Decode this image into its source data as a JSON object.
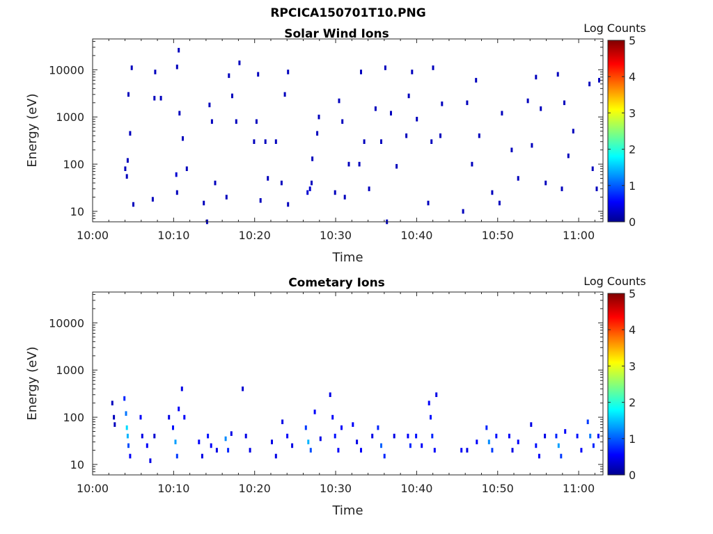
{
  "figure_title": "RPCICA150701T10.PNG",
  "colorbar": {
    "title": "Log Counts",
    "ticks": [
      "0",
      "1",
      "2",
      "3",
      "4",
      "5"
    ],
    "range": [
      0,
      5
    ],
    "colormap": "jet"
  },
  "chart_data": [
    {
      "type": "heatmap",
      "title": "Solar Wind Ions",
      "xlabel": "Time",
      "ylabel": "Energy (eV)",
      "x_ticks": [
        "10:00",
        "10:10",
        "10:20",
        "10:30",
        "10:40",
        "10:50",
        "11:00"
      ],
      "x_range_minutes": [
        0,
        63
      ],
      "y_ticks": [
        "10",
        "100",
        "1000",
        "10000"
      ],
      "y_scale": "log",
      "y_range": [
        6,
        45000
      ],
      "color_range": [
        0,
        5
      ],
      "description": "sparse scattered counts, mostly log counts below 0.5",
      "points": [
        [
          3.9,
          80,
          0.3
        ],
        [
          4.1,
          55,
          0.3
        ],
        [
          4.2,
          120,
          0.3
        ],
        [
          4.3,
          3000,
          0.3
        ],
        [
          4.5,
          450,
          0.3
        ],
        [
          4.7,
          11000,
          0.3
        ],
        [
          4.9,
          14,
          0.3
        ],
        [
          7.3,
          18,
          0.3
        ],
        [
          7.5,
          2500,
          0.3
        ],
        [
          7.6,
          9000,
          0.3
        ],
        [
          8.3,
          2500,
          0.3
        ],
        [
          10.2,
          60,
          0.4
        ],
        [
          10.3,
          25,
          0.3
        ],
        [
          10.3,
          11500,
          0.3
        ],
        [
          10.5,
          26000,
          0.3
        ],
        [
          10.6,
          1200,
          0.3
        ],
        [
          11.0,
          350,
          0.3
        ],
        [
          11.5,
          80,
          0.3
        ],
        [
          13.6,
          15,
          0.3
        ],
        [
          14.0,
          6,
          0.3
        ],
        [
          14.3,
          1800,
          0.3
        ],
        [
          14.6,
          800,
          0.3
        ],
        [
          15.0,
          40,
          0.3
        ],
        [
          16.4,
          20,
          0.3
        ],
        [
          16.7,
          7500,
          0.3
        ],
        [
          17.1,
          2800,
          0.3
        ],
        [
          17.6,
          800,
          0.3
        ],
        [
          18.0,
          14000,
          0.3
        ],
        [
          19.8,
          300,
          0.3
        ],
        [
          20.1,
          800,
          0.3
        ],
        [
          20.3,
          8000,
          0.3
        ],
        [
          20.6,
          17,
          0.3
        ],
        [
          21.2,
          300,
          0.3
        ],
        [
          21.5,
          50,
          0.3
        ],
        [
          22.5,
          300,
          0.3
        ],
        [
          23.2,
          40,
          0.3
        ],
        [
          23.6,
          3000,
          0.3
        ],
        [
          24.0,
          9000,
          0.3
        ],
        [
          24.0,
          14,
          0.3
        ],
        [
          26.4,
          25,
          0.4
        ],
        [
          26.7,
          30,
          0.4
        ],
        [
          26.9,
          40,
          0.3
        ],
        [
          27.0,
          130,
          0.3
        ],
        [
          27.6,
          450,
          0.3
        ],
        [
          27.8,
          1000,
          0.3
        ],
        [
          29.8,
          25,
          0.3
        ],
        [
          30.3,
          2200,
          0.3
        ],
        [
          30.7,
          800,
          0.3
        ],
        [
          31.0,
          20,
          0.3
        ],
        [
          31.5,
          100,
          0.3
        ],
        [
          32.8,
          100,
          0.3
        ],
        [
          33.0,
          9000,
          0.3
        ],
        [
          33.4,
          300,
          0.3
        ],
        [
          34.0,
          30,
          0.3
        ],
        [
          34.8,
          1500,
          0.3
        ],
        [
          35.5,
          300,
          0.3
        ],
        [
          36.0,
          11000,
          0.3
        ],
        [
          36.2,
          6,
          0.3
        ],
        [
          36.7,
          1200,
          0.3
        ],
        [
          37.4,
          90,
          0.3
        ],
        [
          38.6,
          400,
          0.3
        ],
        [
          38.9,
          2800,
          0.3
        ],
        [
          39.3,
          9000,
          0.3
        ],
        [
          39.9,
          900,
          0.3
        ],
        [
          41.3,
          15,
          0.3
        ],
        [
          41.7,
          300,
          0.3
        ],
        [
          41.9,
          11000,
          0.3
        ],
        [
          42.8,
          400,
          0.3
        ],
        [
          43.0,
          1900,
          0.3
        ],
        [
          45.6,
          10,
          0.3
        ],
        [
          46.1,
          2000,
          0.3
        ],
        [
          46.7,
          100,
          0.3
        ],
        [
          47.2,
          6000,
          0.3
        ],
        [
          47.6,
          400,
          0.3
        ],
        [
          49.2,
          25,
          0.3
        ],
        [
          50.1,
          15,
          0.3
        ],
        [
          50.4,
          1200,
          0.3
        ],
        [
          51.6,
          200,
          0.3
        ],
        [
          52.4,
          50,
          0.3
        ],
        [
          53.6,
          2200,
          0.3
        ],
        [
          54.1,
          250,
          0.3
        ],
        [
          54.6,
          7000,
          0.3
        ],
        [
          55.2,
          1500,
          0.3
        ],
        [
          55.8,
          40,
          0.3
        ],
        [
          57.3,
          8000,
          0.3
        ],
        [
          57.8,
          30,
          0.3
        ],
        [
          58.1,
          2000,
          0.3
        ],
        [
          58.6,
          150,
          0.3
        ],
        [
          59.2,
          500,
          0.3
        ],
        [
          61.2,
          5000,
          0.3
        ],
        [
          61.6,
          80,
          0.3
        ],
        [
          62.1,
          30,
          0.3
        ],
        [
          62.4,
          6000,
          0.3
        ]
      ]
    },
    {
      "type": "heatmap",
      "title": "Cometary Ions",
      "xlabel": "Time",
      "ylabel": "Energy (eV)",
      "x_ticks": [
        "10:00",
        "10:10",
        "10:20",
        "10:30",
        "10:40",
        "10:50",
        "11:00"
      ],
      "x_range_minutes": [
        0,
        63
      ],
      "y_ticks": [
        "10",
        "100",
        "1000",
        "10000"
      ],
      "y_scale": "log",
      "y_range": [
        6,
        45000
      ],
      "color_range": [
        0,
        5
      ],
      "description": "bursts of cometary ions between roughly 10 and 400 eV",
      "points": [
        [
          2.3,
          200,
          0.3
        ],
        [
          2.5,
          100,
          0.3
        ],
        [
          2.6,
          70,
          0.3
        ],
        [
          3.8,
          250,
          0.8
        ],
        [
          4.0,
          120,
          1.2
        ],
        [
          4.1,
          60,
          1.7
        ],
        [
          4.2,
          40,
          1.5
        ],
        [
          4.3,
          25,
          1.0
        ],
        [
          4.5,
          15,
          0.6
        ],
        [
          5.8,
          100,
          0.6
        ],
        [
          6.0,
          40,
          0.5
        ],
        [
          6.6,
          25,
          0.6
        ],
        [
          7.0,
          12,
          0.5
        ],
        [
          7.5,
          40,
          0.4
        ],
        [
          9.3,
          100,
          0.5
        ],
        [
          9.8,
          60,
          0.7
        ],
        [
          10.1,
          30,
          1.4
        ],
        [
          10.3,
          15,
          0.9
        ],
        [
          10.5,
          150,
          0.6
        ],
        [
          10.9,
          400,
          0.5
        ],
        [
          11.2,
          100,
          0.6
        ],
        [
          13.0,
          30,
          0.6
        ],
        [
          13.4,
          15,
          0.5
        ],
        [
          14.1,
          40,
          0.7
        ],
        [
          14.5,
          25,
          0.6
        ],
        [
          15.2,
          20,
          0.5
        ],
        [
          16.3,
          35,
          1.3
        ],
        [
          16.6,
          20,
          0.8
        ],
        [
          17.0,
          45,
          0.5
        ],
        [
          18.4,
          400,
          0.4
        ],
        [
          18.8,
          40,
          0.5
        ],
        [
          19.3,
          20,
          0.5
        ],
        [
          22.0,
          30,
          0.5
        ],
        [
          22.5,
          15,
          0.5
        ],
        [
          23.3,
          80,
          0.5
        ],
        [
          23.9,
          40,
          0.6
        ],
        [
          24.5,
          25,
          0.5
        ],
        [
          26.2,
          60,
          0.9
        ],
        [
          26.5,
          30,
          1.5
        ],
        [
          26.8,
          20,
          1.0
        ],
        [
          27.3,
          130,
          0.6
        ],
        [
          28.0,
          35,
          0.5
        ],
        [
          29.2,
          300,
          0.5
        ],
        [
          29.5,
          100,
          0.6
        ],
        [
          29.8,
          40,
          0.7
        ],
        [
          30.2,
          20,
          0.6
        ],
        [
          30.6,
          60,
          0.6
        ],
        [
          32.0,
          70,
          0.6
        ],
        [
          32.5,
          30,
          0.5
        ],
        [
          33.0,
          20,
          0.6
        ],
        [
          34.4,
          40,
          0.5
        ],
        [
          35.1,
          60,
          0.8
        ],
        [
          35.5,
          25,
          1.1
        ],
        [
          35.9,
          15,
          0.8
        ],
        [
          37.1,
          40,
          0.5
        ],
        [
          38.8,
          40,
          0.6
        ],
        [
          39.1,
          25,
          0.8
        ],
        [
          39.8,
          40,
          0.7
        ],
        [
          40.5,
          25,
          0.6
        ],
        [
          41.4,
          200,
          0.6
        ],
        [
          41.6,
          100,
          0.7
        ],
        [
          41.8,
          40,
          0.8
        ],
        [
          42.1,
          20,
          0.6
        ],
        [
          42.3,
          300,
          0.5
        ],
        [
          45.4,
          20,
          0.6
        ],
        [
          46.1,
          20,
          0.5
        ],
        [
          47.3,
          30,
          0.6
        ],
        [
          48.5,
          60,
          0.8
        ],
        [
          48.8,
          30,
          1.3
        ],
        [
          49.2,
          20,
          0.9
        ],
        [
          49.7,
          40,
          0.7
        ],
        [
          51.3,
          40,
          0.6
        ],
        [
          51.7,
          20,
          0.5
        ],
        [
          52.4,
          30,
          0.6
        ],
        [
          54.0,
          70,
          0.5
        ],
        [
          54.6,
          25,
          0.7
        ],
        [
          55.0,
          15,
          0.6
        ],
        [
          55.7,
          40,
          0.5
        ],
        [
          57.1,
          40,
          0.8
        ],
        [
          57.4,
          25,
          1.4
        ],
        [
          57.7,
          15,
          0.9
        ],
        [
          58.2,
          50,
          0.6
        ],
        [
          59.7,
          40,
          0.7
        ],
        [
          60.2,
          20,
          0.6
        ],
        [
          61.0,
          80,
          0.9
        ],
        [
          61.3,
          40,
          1.2
        ],
        [
          61.7,
          25,
          0.8
        ],
        [
          62.3,
          40,
          0.6
        ]
      ]
    }
  ]
}
